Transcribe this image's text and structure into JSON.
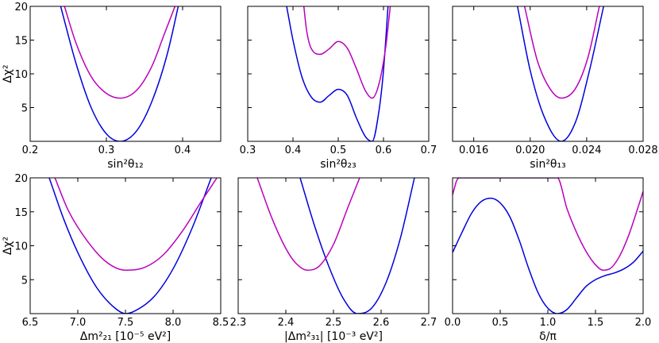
{
  "chart_data": [
    {
      "type": "line",
      "panel": "s12",
      "xlabel": "sin²θ₁₂",
      "ylabel": "Δχ²",
      "xlim": [
        0.2,
        0.45
      ],
      "ylim": [
        0,
        20
      ],
      "xticks": [
        0.2,
        0.3,
        0.4
      ],
      "xtick_labels": [
        "0.2",
        "0.3",
        "0.4"
      ],
      "yticks": [
        5,
        10,
        15,
        20
      ],
      "ytick_labels": [
        "5",
        "10",
        "15",
        "20"
      ],
      "series": [
        {
          "name": "blue",
          "color": "#0000dd",
          "x": [
            0.24,
            0.26,
            0.28,
            0.3,
            0.318,
            0.34,
            0.36,
            0.38,
            0.4
          ],
          "y": [
            20.0,
            11.6,
            5.0,
            1.1,
            0.0,
            1.6,
            6.0,
            13.0,
            23.0
          ]
        },
        {
          "name": "magenta",
          "color": "#bb00bb",
          "x": [
            0.245,
            0.26,
            0.28,
            0.3,
            0.318,
            0.34,
            0.36,
            0.375,
            0.39
          ],
          "y": [
            20.0,
            14.6,
            9.6,
            7.1,
            6.4,
            7.6,
            11.2,
            15.6,
            20.0
          ]
        }
      ]
    },
    {
      "type": "line",
      "panel": "s23",
      "xlabel": "sin²θ₂₃",
      "ylabel": "",
      "xlim": [
        0.3,
        0.7
      ],
      "ylim": [
        0,
        20
      ],
      "xticks": [
        0.3,
        0.4,
        0.5,
        0.6,
        0.7
      ],
      "xtick_labels": [
        "0.3",
        "0.4",
        "0.5",
        "0.6",
        "0.7"
      ],
      "yticks": [
        5,
        10,
        15,
        20
      ],
      "ytick_labels": [
        "",
        "",
        "",
        ""
      ],
      "series": [
        {
          "name": "blue",
          "color": "#0000dd",
          "x": [
            0.386,
            0.4,
            0.42,
            0.44,
            0.46,
            0.48,
            0.5,
            0.52,
            0.54,
            0.56,
            0.575,
            0.59,
            0.6,
            0.61
          ],
          "y": [
            20.0,
            15.0,
            9.5,
            6.6,
            5.8,
            6.8,
            7.7,
            6.8,
            3.5,
            0.7,
            0.0,
            4.5,
            10.5,
            20.0
          ]
        },
        {
          "name": "magenta",
          "color": "#bb00bb",
          "x": [
            0.424,
            0.43,
            0.44,
            0.46,
            0.48,
            0.5,
            0.52,
            0.54,
            0.56,
            0.575,
            0.59,
            0.605,
            0.615
          ],
          "y": [
            20.0,
            16.5,
            13.8,
            12.9,
            13.7,
            14.8,
            13.8,
            10.8,
            7.5,
            6.4,
            8.5,
            14.0,
            20.0
          ]
        }
      ]
    },
    {
      "type": "line",
      "panel": "s13",
      "xlabel": "sin²θ₁₃",
      "ylabel": "",
      "xlim": [
        0.0145,
        0.028
      ],
      "ylim": [
        0,
        20
      ],
      "xticks": [
        0.016,
        0.02,
        0.024,
        0.028
      ],
      "xtick_labels": [
        "0.016",
        "0.020",
        "0.024",
        "0.028"
      ],
      "yticks": [
        5,
        10,
        15,
        20
      ],
      "ytick_labels": [
        "",
        "",
        "",
        ""
      ],
      "series": [
        {
          "name": "blue",
          "color": "#0000dd",
          "x": [
            0.0191,
            0.02,
            0.021,
            0.0222,
            0.0232,
            0.0242,
            0.0252
          ],
          "y": [
            20.0,
            10.5,
            3.6,
            0.0,
            2.8,
            10.5,
            20.0
          ]
        },
        {
          "name": "magenta",
          "color": "#bb00bb",
          "x": [
            0.0196,
            0.0205,
            0.0214,
            0.0222,
            0.0232,
            0.0241,
            0.0249
          ],
          "y": [
            20.0,
            12.0,
            7.8,
            6.4,
            7.8,
            12.5,
            20.0
          ]
        }
      ]
    },
    {
      "type": "line",
      "panel": "dm21",
      "xlabel": "Δm²₂₁ [10⁻⁵ eV²]",
      "ylabel": "Δχ²",
      "xlim": [
        6.5,
        8.5
      ],
      "ylim": [
        0,
        20
      ],
      "xticks": [
        6.5,
        7.0,
        7.5,
        8.0,
        8.5
      ],
      "xtick_labels": [
        "6.5",
        "7.0",
        "7.5",
        "8.0",
        "8.5"
      ],
      "yticks": [
        5,
        10,
        15,
        20
      ],
      "ytick_labels": [
        "5",
        "10",
        "15",
        "20"
      ],
      "series": [
        {
          "name": "blue",
          "color": "#0000dd",
          "x": [
            6.7,
            6.85,
            7.0,
            7.2,
            7.4,
            7.5,
            7.6,
            7.8,
            8.0,
            8.2,
            8.4
          ],
          "y": [
            20.0,
            14.0,
            9.0,
            3.8,
            0.7,
            0.0,
            0.4,
            2.5,
            6.6,
            12.6,
            20.0
          ]
        },
        {
          "name": "magenta",
          "color": "#bb00bb",
          "x": [
            6.76,
            6.9,
            7.1,
            7.3,
            7.5,
            7.7,
            7.9,
            8.1,
            8.3,
            8.46
          ],
          "y": [
            20.0,
            15.2,
            10.7,
            7.6,
            6.4,
            6.8,
            8.7,
            12.2,
            16.6,
            20.0
          ]
        }
      ]
    },
    {
      "type": "line",
      "panel": "dm31",
      "xlabel": "|Δm²₃₁| [10⁻³ eV²]",
      "ylabel": "",
      "xlim": [
        2.3,
        2.7
      ],
      "ylim": [
        0,
        20
      ],
      "xticks": [
        2.3,
        2.4,
        2.5,
        2.6,
        2.7
      ],
      "xtick_labels": [
        "2.3",
        "2.4",
        "2.5",
        "2.6",
        "2.7"
      ],
      "yticks": [
        5,
        10,
        15,
        20
      ],
      "ytick_labels": [
        "",
        "",
        "",
        ""
      ],
      "series": [
        {
          "name": "blue",
          "color": "#0000dd",
          "x": [
            2.43,
            2.46,
            2.49,
            2.52,
            2.55,
            2.58,
            2.61,
            2.64,
            2.67
          ],
          "y": [
            20.0,
            13.0,
            7.0,
            2.3,
            0.0,
            0.8,
            4.5,
            11.0,
            20.0
          ]
        },
        {
          "name": "magenta",
          "color": "#bb00bb",
          "x": [
            2.34,
            2.37,
            2.4,
            2.42,
            2.445,
            2.47,
            2.5,
            2.53,
            2.555
          ],
          "y": [
            20.0,
            14.2,
            9.6,
            7.5,
            6.4,
            7.0,
            10.2,
            15.6,
            20.0
          ]
        }
      ]
    },
    {
      "type": "line",
      "panel": "delta",
      "xlabel": "δ/π",
      "ylabel": "",
      "xlim": [
        0.0,
        2.0
      ],
      "ylim": [
        0,
        20
      ],
      "xticks": [
        0.0,
        0.5,
        1.0,
        1.5,
        2.0
      ],
      "xtick_labels": [
        "0.0",
        "0.5",
        "1.0",
        "1.5",
        "2.0"
      ],
      "yticks": [
        5,
        10,
        15,
        20
      ],
      "ytick_labels": [
        "",
        "",
        "",
        ""
      ],
      "series": [
        {
          "name": "blue",
          "color": "#0000dd",
          "x": [
            0.0,
            0.1,
            0.2,
            0.3,
            0.4,
            0.5,
            0.6,
            0.7,
            0.8,
            0.9,
            1.0,
            1.1,
            1.2,
            1.3,
            1.4,
            1.5,
            1.6,
            1.7,
            1.8,
            1.9,
            2.0
          ],
          "y": [
            9.0,
            12.0,
            14.8,
            16.5,
            17.0,
            16.3,
            14.3,
            10.8,
            6.6,
            3.0,
            0.8,
            0.0,
            0.6,
            2.3,
            4.0,
            5.0,
            5.6,
            6.0,
            6.6,
            7.6,
            9.2
          ]
        },
        {
          "name": "magenta",
          "color": "#bb00bb",
          "x": [
            0.0,
            0.02,
            0.04,
            0.07,
            1.1,
            1.2,
            1.3,
            1.4,
            1.5,
            1.58,
            1.65,
            1.75,
            1.85,
            1.95,
            2.0
          ],
          "y": [
            17.5,
            18.5,
            19.5,
            20.0,
            20.0,
            15.5,
            12.0,
            9.2,
            7.2,
            6.4,
            6.6,
            8.4,
            11.6,
            15.8,
            18.0
          ]
        }
      ]
    }
  ]
}
